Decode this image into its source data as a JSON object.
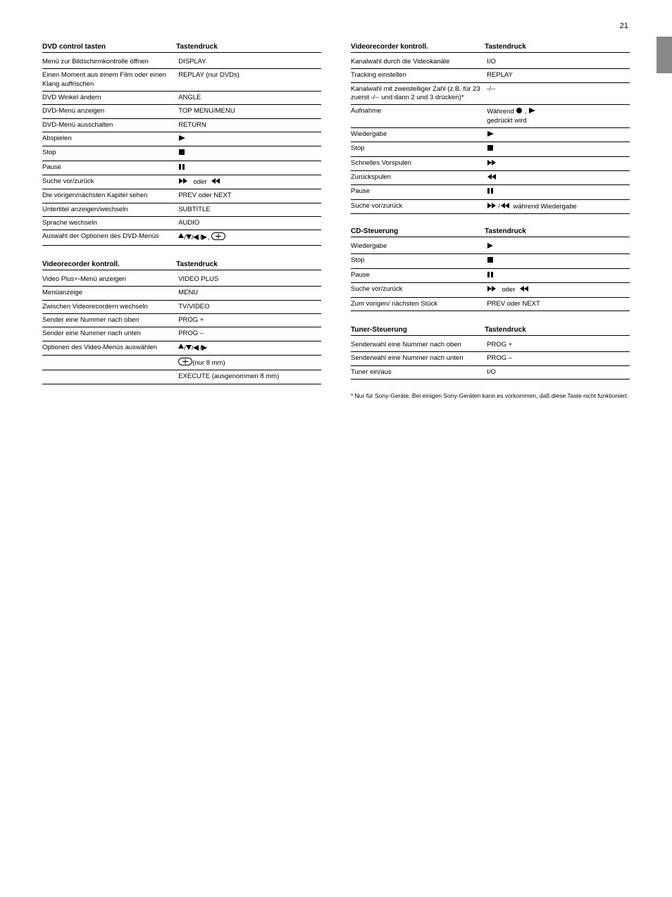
{
  "page_number": "21",
  "tables": {
    "dvd_controls": {
      "header_a": "DVD control tasten",
      "header_b": "Tastendruck",
      "rows": [
        {
          "a": "Menü zur Bildschirmkontrolle öffnen",
          "b": "DISPLAY"
        },
        {
          "a": "Einen Moment aus einem Film oder einen Klang auffrischen",
          "b": "REPLAY (nur DVDs)"
        },
        {
          "a": "DVD Winkel ändern",
          "b": "ANGLE"
        },
        {
          "a": "DVD-Menü anzeigen",
          "b": "TOP MENU/MENU"
        },
        {
          "a": "DVD-Menü ausschalten",
          "b": "RETURN"
        },
        {
          "a": "Abspielen",
          "b": "<svg class='ic' width='12' height='10'><polygon points='1,1 10,5 1,9' fill='black'/></svg>"
        },
        {
          "a": "Stop",
          "b": "<svg class='ic' width='10' height='10'><rect x='1' y='1' width='8' height='8' fill='black'/></svg>"
        },
        {
          "a": "Pause",
          "b": "<svg class='ic' width='10' height='10'><rect x='1' y='1' width='3' height='8' fill='black'/><rect x='6' y='1' width='3' height='8' fill='black'/></svg>"
        },
        {
          "a": "Suche vor/zurück",
          "b": "<svg class='ic' width='16' height='10'><polygon points='1,1 7,5 1,9' fill='black'/><polygon points='7,1 13,5 7,9' fill='black'/></svg>&nbsp; oder &nbsp;<svg class='ic' width='16' height='10'><polygon points='13,1 7,5 13,9' fill='black'/><polygon points='7,1 1,5 7,9' fill='black'/></svg>"
        },
        {
          "a": "Die vorigen/nächsten Kapitel sehen",
          "b": "PREV oder NEXT"
        },
        {
          "a": "Untertitel anzeigen/wechseln",
          "b": "SUBTITLE"
        },
        {
          "a": "Sprache wechseln",
          "b": "AUDIO"
        },
        {
          "a": "Auswahl der Optionen des DVD-Menüs",
          "b": "<svg class='ic' width='8' height='10'><polygon points='4,0 8,7 0,7' fill='black'/></svg>/<svg class='ic' width='8' height='10'><polygon points='0,2 8,2 4,9' fill='black'/></svg>/<svg class='ic' width='9' height='8'><polygon points='8,0 8,8 0,4' fill='black'/></svg>/<svg class='ic' width='9' height='8'><polygon points='0,0 0,8 8,4' fill='black'/></svg>, <svg class='ic' width='20' height='11'><rect x='0.5' y='0.5' width='19' height='10' rx='5' ry='5' fill='none' stroke='black'/><line x1='10' y1='2' x2='10' y2='9' stroke='black'/><line x1='6' y1='5.5' x2='14' y2='5.5' stroke='black'/></svg>"
        }
      ]
    },
    "vcr_controls": {
      "header_a": "Videorecorder kontroll.",
      "header_b": "Tastendruck",
      "rows": [
        {
          "a": "Video Plus+-Menü anzeigen",
          "b": "VIDEO PLUS"
        },
        {
          "a": "Menüanzeige",
          "b": "MENU"
        },
        {
          "a": "Zwischen Videorecordern wechseln",
          "b": "TV/VIDEO"
        },
        {
          "a": "Sender eine Nummer nach oben",
          "b": "PROG +"
        },
        {
          "a": "Sender eine Nummer nach unten",
          "b": "PROG –"
        },
        {
          "a": "Optionen des Video-Menüs auswählen",
          "b": "<svg class='ic' width='8' height='10'><polygon points='4,0 8,7 0,7' fill='black'/></svg>/<svg class='ic' width='8' height='10'><polygon points='0,2 8,2 4,9' fill='black'/></svg>/<svg class='ic' width='9' height='8'><polygon points='8,0 8,8 0,4' fill='black'/></svg>/<svg class='ic' width='9' height='8'><polygon points='0,0 0,8 8,4' fill='black'/></svg>"
        },
        {
          "a": "",
          "b": "<svg class='ic' width='20' height='11'><rect x='0.5' y='0.5' width='19' height='10' rx='5' ry='5' fill='none' stroke='black'/><line x1='10' y1='2' x2='10' y2='9' stroke='black'/><line x1='6' y1='5.5' x2='14' y2='5.5' stroke='black'/></svg>(nur 8 mm)"
        },
        {
          "a": "",
          "b": "EXECUTE (ausgenommen 8 mm)"
        }
      ]
    },
    "vcr2": {
      "header_a": "Videorecorder kontroll.",
      "header_b": "Tastendruck",
      "rows": [
        {
          "a": "Kanalwahl durch die Videokanäle",
          "b": "I/O"
        },
        {
          "a": "Tracking einstellen",
          "b": "REPLAY"
        },
        {
          "a": "Kanalwahl mit zweistelliger Zahl (z.B. für 23 zuerst -/-- und dann 2 und 3 drücken)*",
          "b": "-/--"
        },
        {
          "a": "Aufnahme",
          "b": "Während <svg class='ic' width='10' height='10'><circle cx='5' cy='5' r='4' fill='black'/></svg> , <svg class='ic' width='12' height='10'><polygon points='1,1 10,5 1,9' fill='black'/></svg><br>gedrückt wird"
        },
        {
          "a": "Wiedergabe",
          "b": "<svg class='ic' width='12' height='10'><polygon points='1,1 10,5 1,9' fill='black'/></svg>"
        },
        {
          "a": "Stop",
          "b": "<svg class='ic' width='10' height='10'><rect x='1' y='1' width='8' height='8' fill='black'/></svg>"
        },
        {
          "a": "Schnelles Vorspulen",
          "b": "<svg class='ic' width='16' height='10'><polygon points='1,1 7,5 1,9' fill='black'/><polygon points='7,1 13,5 7,9' fill='black'/></svg>"
        },
        {
          "a": "Zurückspulen",
          "b": "<svg class='ic' width='16' height='10'><polygon points='13,1 7,5 13,9' fill='black'/><polygon points='7,1 1,5 7,9' fill='black'/></svg>"
        },
        {
          "a": "Pause",
          "b": "<svg class='ic' width='10' height='10'><rect x='1' y='1' width='3' height='8' fill='black'/><rect x='6' y='1' width='3' height='8' fill='black'/></svg>"
        },
        {
          "a": "Suche vor/zurück",
          "b": "<svg class='ic' width='16' height='10'><polygon points='1,1 7,5 1,9' fill='black'/><polygon points='7,1 13,5 7,9' fill='black'/></svg>/<svg class='ic' width='16' height='10'><polygon points='13,1 7,5 13,9' fill='black'/><polygon points='7,1 1,5 7,9' fill='black'/></svg> während Wiedergabe"
        }
      ]
    },
    "cd": {
      "header_a": "CD-Steuerung",
      "header_b": "Tastendruck",
      "rows": [
        {
          "a": "Wiedergabe",
          "b": "<svg class='ic' width='10' height='10'><polygon points='1,1 9,5 1,9' fill='black'/></svg>"
        },
        {
          "a": "Stop",
          "b": "<svg class='ic' width='10' height='10'><rect x='1' y='1' width='8' height='8' fill='black'/></svg>"
        },
        {
          "a": "Pause",
          "b": "<svg class='ic' width='10' height='10'><rect x='1' y='1' width='3' height='8' fill='black'/><rect x='6' y='1' width='3' height='8' fill='black'/></svg>"
        },
        {
          "a": "Suche vor/zurück",
          "b": "<svg class='ic' width='16' height='10'><polygon points='1,1 7,5 1,9' fill='black'/><polygon points='7,1 13,5 7,9' fill='black'/></svg>&nbsp; oder &nbsp;<svg class='ic' width='16' height='10'><polygon points='13,1 7,5 13,9' fill='black'/><polygon points='7,1 1,5 7,9' fill='black'/></svg>"
        },
        {
          "a": "Zum vorigen/ nächsten Stück",
          "b": "PREV oder NEXT"
        }
      ]
    },
    "tuner": {
      "header_a": "Tuner-Steuerung",
      "header_b": "Tastendruck",
      "rows": [
        {
          "a": "Senderwahl eine Nummer nach oben",
          "b": "PROG +"
        },
        {
          "a": "Senderwahl eine Nummer nach unten",
          "b": "PROG –"
        },
        {
          "a": "Tuner ein/aus",
          "b": "I/O"
        }
      ]
    }
  },
  "note_text": "* Nur für Sony-Geräte. Bei einigen Sony-Geräten kann es vorkommen, daß diese Taste nicht funktioniert."
}
